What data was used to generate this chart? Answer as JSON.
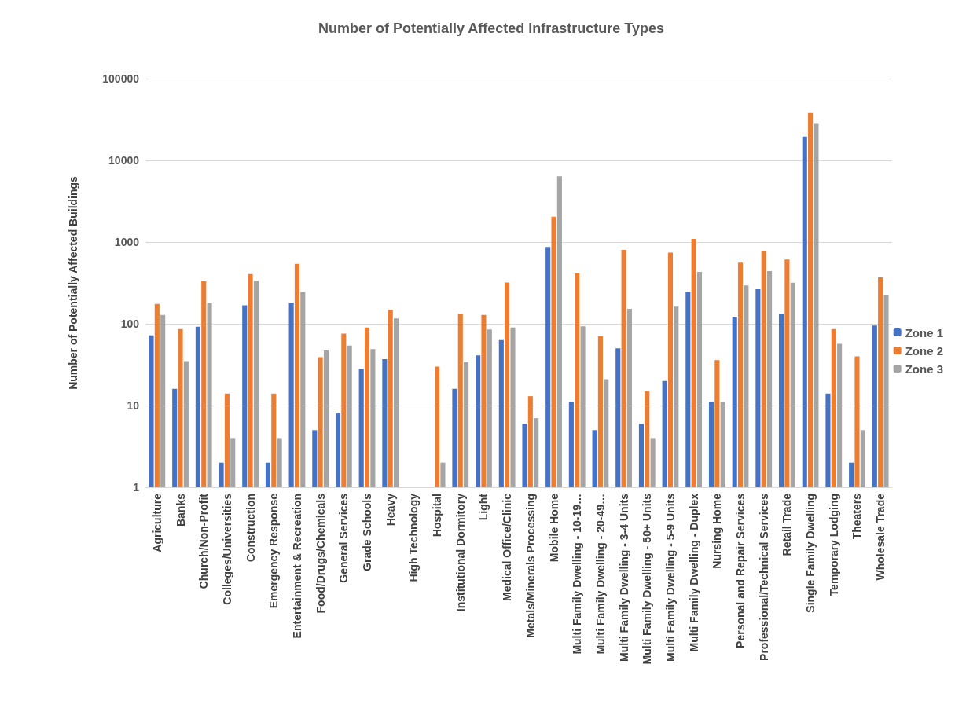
{
  "chart_data": {
    "type": "bar",
    "title": "Number of Potentially Affected Infrastructure Types",
    "ylabel": "Number of Potentially Affected Buildings",
    "categories": [
      "Agriculture",
      "Banks",
      "Church/Non-Profit",
      "Colleges/Universities",
      "Construction",
      "Emergency Response",
      "Entertainment & Recreation",
      "Food/Drugs/Chemicals",
      "General Services",
      "Grade Schools",
      "Heavy",
      "High Technology",
      "Hospital",
      "Institutional Dormitory",
      "Light",
      "Medical Office/Clinic",
      "Metals/Minerals Processing",
      "Mobile Home",
      "Multi Family Dwelling - 10-19…",
      "Multi Family Dwelling - 20-49…",
      "Multi Family Dwelling - 3-4 Units",
      "Multi Family Dwelling - 50+ Units",
      "Multi Family Dwelling - 5-9 Units",
      "Multi Family Dwelling - Duplex",
      "Nursing Home",
      "Personal and Repair Services",
      "Professional/Technical Services",
      "Retail Trade",
      "Single Family Dwelling",
      "Temporary Lodging",
      "Theaters",
      "Wholesale Trade"
    ],
    "series": [
      {
        "name": "Zone 1",
        "color": "#4472c4",
        "values": [
          72,
          16,
          92,
          2,
          168,
          2,
          182,
          5,
          8,
          28,
          37,
          null,
          null,
          16,
          41,
          63,
          6,
          870,
          11,
          5,
          50,
          6,
          20,
          245,
          11,
          122,
          265,
          131,
          19500,
          14,
          2,
          95
        ]
      },
      {
        "name": "Zone 2",
        "color": "#ed7d31",
        "values": [
          175,
          86,
          330,
          14,
          405,
          14,
          540,
          39,
          76,
          90,
          148,
          null,
          30,
          132,
          128,
          320,
          13,
          2040,
          415,
          70,
          800,
          15,
          740,
          1090,
          36,
          560,
          770,
          610,
          38000,
          86,
          40,
          370
        ]
      },
      {
        "name": "Zone 3",
        "color": "#a5a5a5",
        "values": [
          128,
          35,
          178,
          4,
          335,
          4,
          245,
          47,
          54,
          49,
          116,
          null,
          2,
          34,
          85,
          90,
          7,
          6400,
          93,
          21,
          152,
          4,
          162,
          430,
          11,
          295,
          440,
          318,
          28000,
          57,
          5,
          222
        ]
      }
    ],
    "log": true,
    "ylim": [
      1,
      100000
    ],
    "yticks": [
      1,
      10,
      100,
      1000,
      10000,
      100000
    ],
    "grid": "y",
    "legend": "right"
  }
}
